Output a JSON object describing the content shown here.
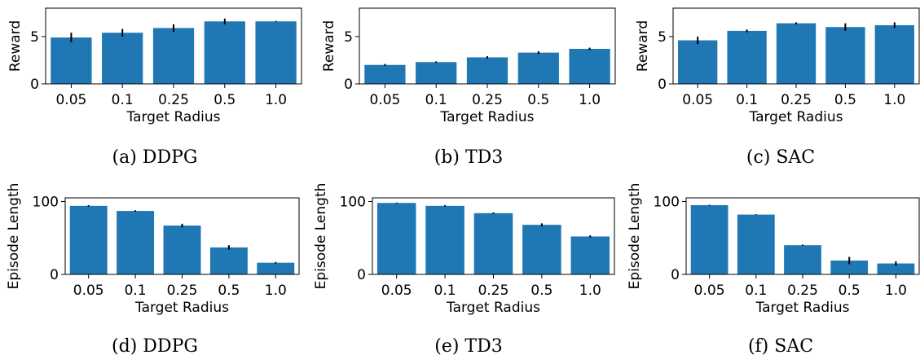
{
  "colors": {
    "bar": "#1f77b4",
    "error": "#000000",
    "axis": "#000000"
  },
  "chart_data": [
    {
      "type": "bar",
      "caption": "(a) DDPG",
      "xlabel": "Target Radius",
      "ylabel": "Reward",
      "categories": [
        "0.05",
        "0.1",
        "0.25",
        "0.5",
        "1.0"
      ],
      "values": [
        4.9,
        5.4,
        5.9,
        6.6,
        6.6
      ],
      "errors": [
        0.5,
        0.4,
        0.4,
        0.3,
        0.05
      ],
      "ylim": [
        0,
        8
      ],
      "yticks": [
        0,
        5
      ]
    },
    {
      "type": "bar",
      "caption": "(b) TD3",
      "xlabel": "Target Radius",
      "ylabel": "Reward",
      "categories": [
        "0.05",
        "0.1",
        "0.25",
        "0.5",
        "1.0"
      ],
      "values": [
        2.0,
        2.3,
        2.8,
        3.3,
        3.7
      ],
      "errors": [
        0.1,
        0.08,
        0.12,
        0.15,
        0.12
      ],
      "ylim": [
        0,
        8
      ],
      "yticks": [
        0,
        5
      ]
    },
    {
      "type": "bar",
      "caption": "(c) SAC",
      "xlabel": "Target Radius",
      "ylabel": "Reward",
      "categories": [
        "0.05",
        "0.1",
        "0.25",
        "0.5",
        "1.0"
      ],
      "values": [
        4.6,
        5.6,
        6.4,
        6.0,
        6.2
      ],
      "errors": [
        0.4,
        0.15,
        0.1,
        0.4,
        0.3
      ],
      "ylim": [
        0,
        8
      ],
      "yticks": [
        0,
        5
      ]
    },
    {
      "type": "bar",
      "caption": "(d) DDPG",
      "xlabel": "Target Radius",
      "ylabel": "Episode Length",
      "categories": [
        "0.05",
        "0.1",
        "0.25",
        "0.5",
        "1.0"
      ],
      "values": [
        94,
        87,
        67,
        37,
        16
      ],
      "errors": [
        1.0,
        1.0,
        2.5,
        3.0,
        1.0
      ],
      "ylim": [
        0,
        105
      ],
      "yticks": [
        0,
        100
      ]
    },
    {
      "type": "bar",
      "caption": "(e) TD3",
      "xlabel": "Target Radius",
      "ylabel": "Episode Length",
      "categories": [
        "0.05",
        "0.1",
        "0.25",
        "0.5",
        "1.0"
      ],
      "values": [
        98,
        94,
        84,
        68,
        52
      ],
      "errors": [
        0.5,
        1.0,
        1.0,
        2.0,
        1.5
      ],
      "ylim": [
        0,
        105
      ],
      "yticks": [
        0,
        100
      ]
    },
    {
      "type": "bar",
      "caption": "(f) SAC",
      "xlabel": "Target Radius",
      "ylabel": "Episode Length",
      "categories": [
        "0.05",
        "0.1",
        "0.25",
        "0.5",
        "1.0"
      ],
      "values": [
        95,
        82,
        40,
        19,
        15
      ],
      "errors": [
        0.5,
        0.5,
        0.8,
        5.0,
        3.0
      ],
      "ylim": [
        0,
        105
      ],
      "yticks": [
        0,
        100
      ]
    }
  ]
}
